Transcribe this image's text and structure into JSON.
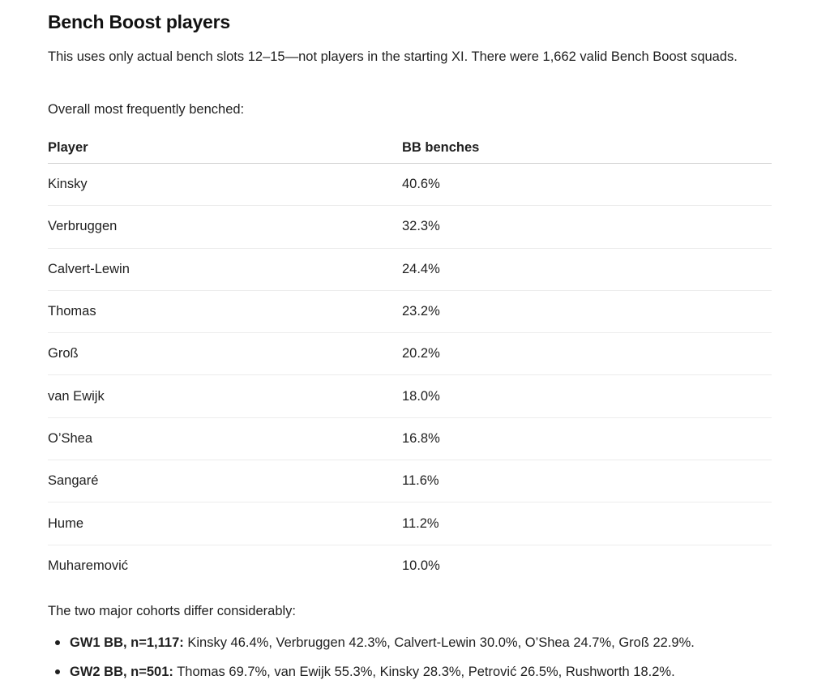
{
  "heading": "Bench Boost players",
  "intro": "This uses only actual bench slots 12–15—not players in the starting XI. There were 1,662 valid Bench Boost squads.",
  "lead": "Overall most frequently benched:",
  "table": {
    "headers": [
      "Player",
      "BB benches"
    ],
    "rows": [
      [
        "Kinsky",
        "40.6%"
      ],
      [
        "Verbruggen",
        "32.3%"
      ],
      [
        "Calvert-Lewin",
        "24.4%"
      ],
      [
        "Thomas",
        "23.2%"
      ],
      [
        "Groß",
        "20.2%"
      ],
      [
        "van Ewijk",
        "18.0%"
      ],
      [
        "O’Shea",
        "16.8%"
      ],
      [
        "Sangaré",
        "11.6%"
      ],
      [
        "Hume",
        "11.2%"
      ],
      [
        "Muharemović",
        "10.0%"
      ]
    ]
  },
  "cohort_lead": "The two major cohorts differ considerably:",
  "cohorts": [
    {
      "label": "GW1 BB, n=1,117:",
      "text": " Kinsky 46.4%, Verbruggen 42.3%, Calvert-Lewin 30.0%, O’Shea 24.7%, Groß 22.9%."
    },
    {
      "label": "GW2 BB, n=501:",
      "text": " Thomas 69.7%, van Ewijk 55.3%, Kinsky 28.3%, Petrović 26.5%, Rushworth 18.2%."
    }
  ]
}
